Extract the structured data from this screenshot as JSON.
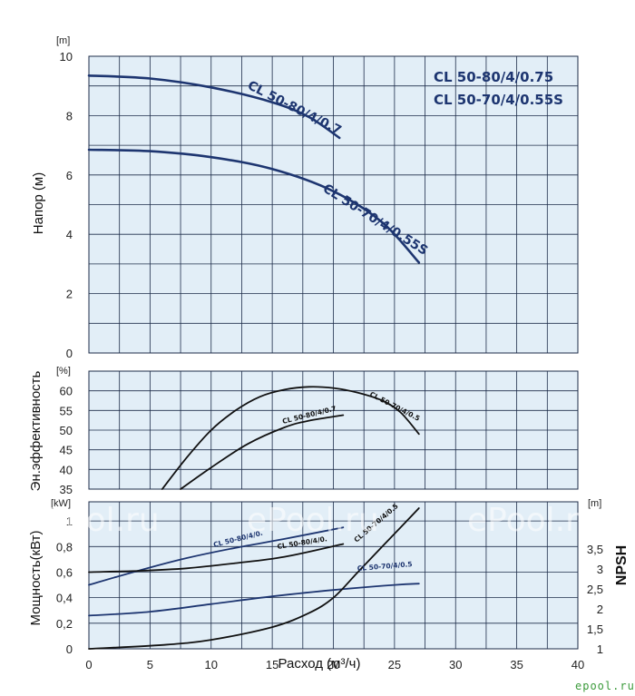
{
  "colors": {
    "panel_bg": "#e2eef7",
    "grid": "#1e2d4a",
    "navy": "#1d3570",
    "black": "#111111",
    "watermark": "#ffffff",
    "brand": "#3a9a3a"
  },
  "legend_lines": [
    "CL 50-80/4/0.75",
    "CL 50-70/4/0.55S"
  ],
  "watermark": "ePool.ru",
  "brand_logo": "epool.ru",
  "chart_data": [
    {
      "id": "head",
      "type": "line",
      "ylabel": "Напор (м)",
      "unit": "[m]",
      "xlim": [
        0,
        40
      ],
      "ylim": [
        0,
        10
      ],
      "grid": true,
      "yticks": [
        "0",
        "2",
        "4",
        "6",
        "8",
        "10"
      ],
      "series": [
        {
          "name": "CL 50-80/4/0.75",
          "color": "navy",
          "points": [
            [
              0,
              9.35
            ],
            [
              5,
              9.25
            ],
            [
              10,
              8.95
            ],
            [
              15,
              8.45
            ],
            [
              18,
              7.95
            ],
            [
              20.5,
              7.25
            ]
          ]
        },
        {
          "name": "CL 50-70/4/0.55S",
          "color": "navy",
          "points": [
            [
              0,
              6.85
            ],
            [
              5,
              6.8
            ],
            [
              10,
              6.6
            ],
            [
              15,
              6.2
            ],
            [
              20,
              5.45
            ],
            [
              24,
              4.4
            ],
            [
              27,
              3.05
            ]
          ]
        }
      ]
    },
    {
      "id": "efficiency",
      "type": "line",
      "ylabel": "Эн.эффективность",
      "unit": "[%]",
      "xlim": [
        0,
        40
      ],
      "ylim": [
        35,
        65
      ],
      "grid": true,
      "yticks": [
        "35",
        "40",
        "45",
        "50",
        "55",
        "60"
      ],
      "series": [
        {
          "name": "CL 50-80/4/0.75",
          "color": "black",
          "points": [
            [
              7.5,
              35
            ],
            [
              10,
              40.5
            ],
            [
              13,
              46.5
            ],
            [
              16,
              50.7
            ],
            [
              18,
              52.4
            ],
            [
              20.8,
              53.8
            ]
          ]
        },
        {
          "name": "CL 50-70/4/0.55S",
          "color": "black",
          "points": [
            [
              6,
              35
            ],
            [
              8,
              43
            ],
            [
              10,
              50
            ],
            [
              12,
              55
            ],
            [
              14,
              58.5
            ],
            [
              16,
              60.3
            ],
            [
              18,
              61
            ],
            [
              20,
              60.7
            ],
            [
              22,
              59.5
            ],
            [
              24,
              57.5
            ],
            [
              25.5,
              54.5
            ],
            [
              27,
              49
            ]
          ]
        }
      ]
    },
    {
      "id": "power",
      "type": "line",
      "ylabel": "Мощность(кВт)",
      "unit": "[kW]",
      "xlabel": "Расход (м³/ч)",
      "xlim": [
        0,
        40
      ],
      "ylim": [
        0,
        1.15
      ],
      "grid": true,
      "xticks": [
        "0",
        "5",
        "10",
        "15",
        "20",
        "25",
        "30",
        "35",
        "40"
      ],
      "yticks": [
        "0",
        "0,2",
        "0,4",
        "0,6",
        "0,8",
        "1"
      ],
      "right_axis": {
        "label": "NPSH",
        "unit": "[m]",
        "ticks": [
          "1",
          "1,5",
          "2",
          "2,5",
          "3",
          "3,5"
        ]
      },
      "series": [
        {
          "name": "CL 50-80/4/0.75",
          "label": "CL 50-80/4/0.75",
          "color": "navy",
          "points": [
            [
              0,
              0.5
            ],
            [
              4,
              0.61
            ],
            [
              8,
              0.71
            ],
            [
              12,
              0.79
            ],
            [
              16,
              0.86
            ],
            [
              20.8,
              0.95
            ]
          ]
        },
        {
          "name": "CL 50-80/4/0.75",
          "label": "CL 50-80/4/0.75",
          "color": "black",
          "points": [
            [
              0,
              0.6
            ],
            [
              4,
              0.61
            ],
            [
              8,
              0.63
            ],
            [
              12,
              0.67
            ],
            [
              16,
              0.72
            ],
            [
              20.8,
              0.82
            ]
          ]
        },
        {
          "name": "CL 50-70/4/0.55S",
          "label": "CL 50-70/4/0.55S",
          "color": "navy",
          "points": [
            [
              0,
              0.26
            ],
            [
              5,
              0.29
            ],
            [
              10,
              0.35
            ],
            [
              15,
              0.41
            ],
            [
              20,
              0.46
            ],
            [
              25,
              0.5
            ],
            [
              27,
              0.51
            ]
          ]
        },
        {
          "name": "CL 50-70/4/0.55S",
          "label": "CL 50-70/4/0.55S",
          "color": "black",
          "points": [
            [
              0,
              0.0
            ],
            [
              6,
              0.03
            ],
            [
              10,
              0.07
            ],
            [
              15,
              0.17
            ],
            [
              18,
              0.28
            ],
            [
              20,
              0.4
            ],
            [
              22,
              0.6
            ],
            [
              24,
              0.8
            ],
            [
              26,
              1.0
            ],
            [
              27,
              1.1
            ]
          ]
        }
      ]
    }
  ]
}
